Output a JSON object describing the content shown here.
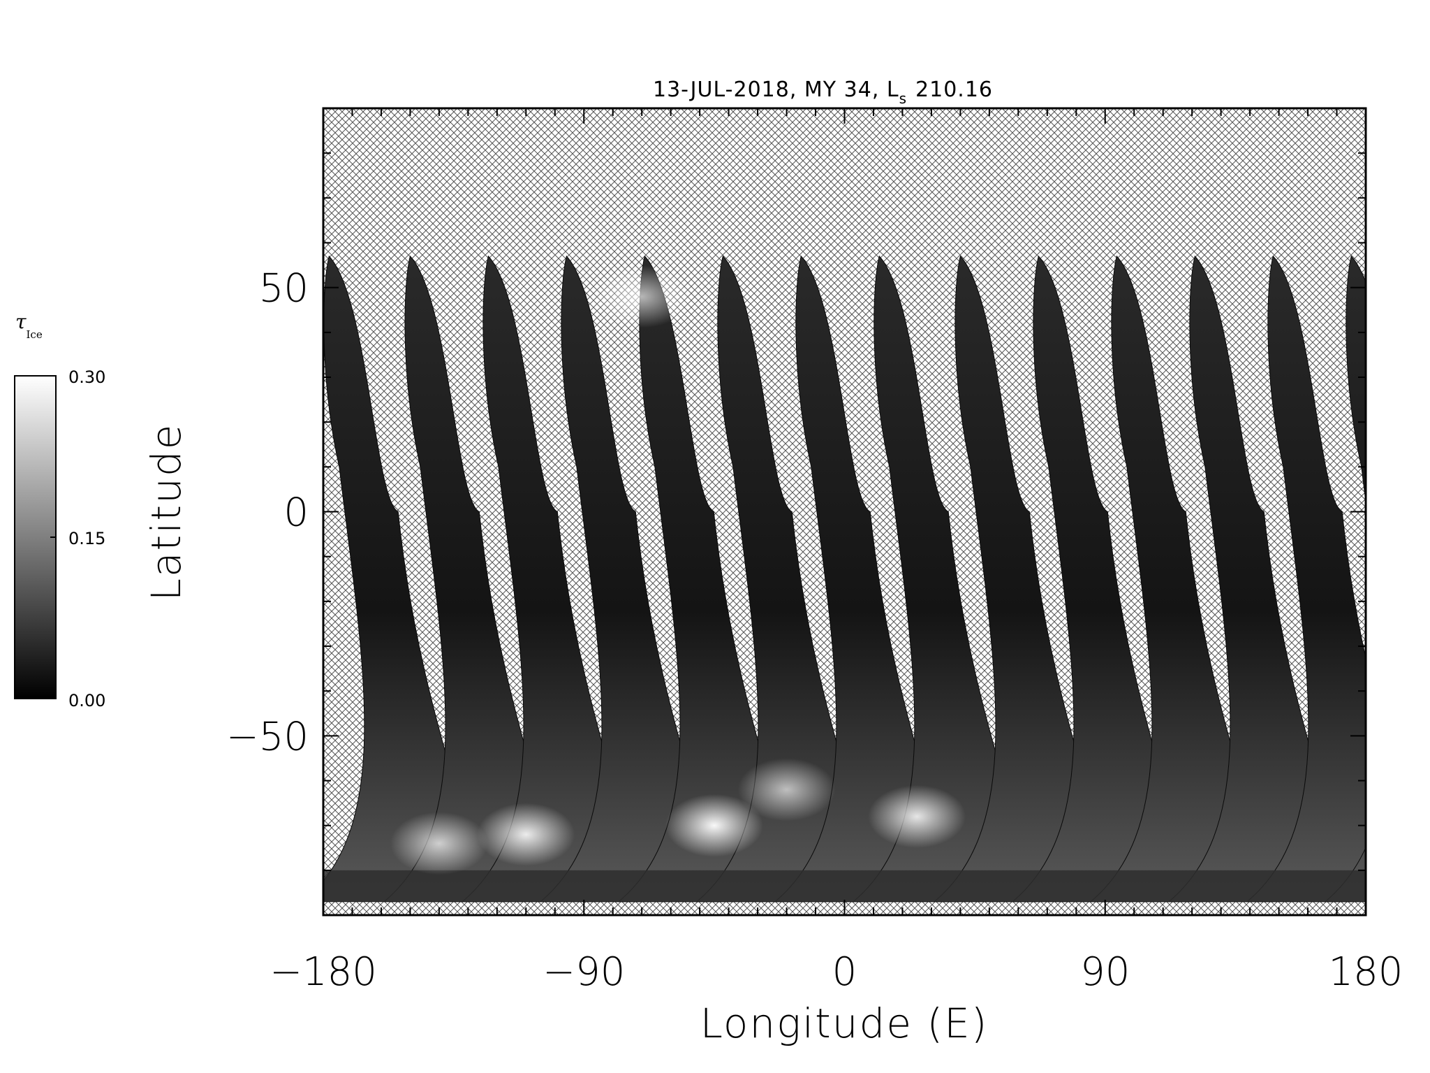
{
  "chart_data": {
    "type": "heatmap",
    "title": "13-JUL-2018, MY 34,  L",
    "title_subscript": "s",
    "title_value": "210.16",
    "xlabel": "Longitude (E)",
    "ylabel": "Latitude",
    "xlim": [
      -180,
      180
    ],
    "ylim": [
      -90,
      90
    ],
    "x_ticks": [
      -180,
      -90,
      0,
      90,
      180
    ],
    "x_tick_labels": [
      "−180",
      "−90",
      "0",
      "90",
      "180"
    ],
    "y_ticks": [
      -50,
      0,
      50
    ],
    "y_tick_labels": [
      "−50",
      "0",
      "50"
    ],
    "no_data_pattern": "crosshatch",
    "orbit_swath_start_longitudes": [
      -178,
      -150,
      -123,
      -96,
      -69,
      -42,
      -15,
      12,
      40,
      67,
      94,
      121,
      148,
      175
    ],
    "swath_top_latitude": 57,
    "swath_bottom_latitude": -87,
    "bright_regions": [
      {
        "lon": -110,
        "lat": -72,
        "value": 0.27
      },
      {
        "lon": -45,
        "lat": -70,
        "value": 0.29
      },
      {
        "lon": 25,
        "lat": -68,
        "value": 0.26
      },
      {
        "lon": -140,
        "lat": -74,
        "value": 0.22
      },
      {
        "lon": -20,
        "lat": -62,
        "value": 0.2
      },
      {
        "lon": -70,
        "lat": 48,
        "value": 0.2
      }
    ],
    "colorbar": {
      "title": "τ",
      "title_subscript": "Ice",
      "min": 0.0,
      "max": 0.3,
      "tick_labels": [
        "0.30",
        "0.15",
        "0.00"
      ],
      "colormap": "grayscale"
    }
  }
}
